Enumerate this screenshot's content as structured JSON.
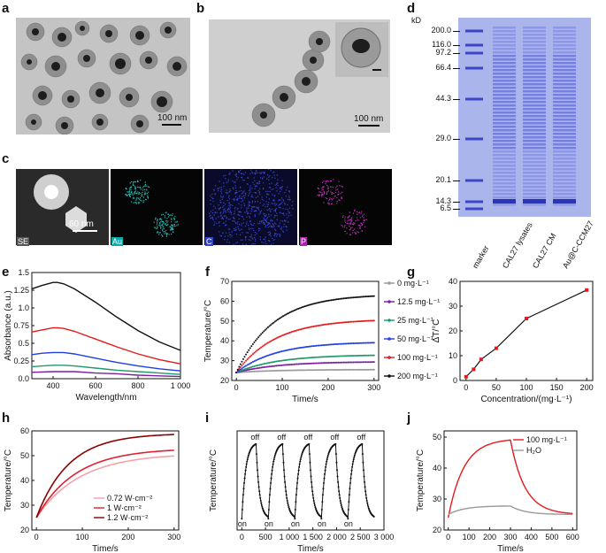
{
  "panels": {
    "a": {
      "label": "a",
      "scale": "100 nm"
    },
    "b": {
      "label": "b",
      "scale": "100 nm"
    },
    "c": {
      "label": "c",
      "scale": "60 nm",
      "maps": [
        "SE",
        "Au",
        "C",
        "P"
      ]
    },
    "d": {
      "label": "d",
      "unit": "kD",
      "mw": [
        "200.0",
        "116.0",
        "97.2",
        "66.4",
        "44.3",
        "29.0",
        "20.1",
        "14.3",
        "6.5"
      ],
      "lanes": [
        "marker",
        "CAL27 lysates",
        "CAL27 CM",
        "Au@C-CCM27"
      ]
    },
    "e": {
      "label": "e"
    },
    "f": {
      "label": "f"
    },
    "g": {
      "label": "g"
    },
    "h": {
      "label": "h"
    },
    "i": {
      "label": "i",
      "annot_off": "off",
      "annot_on": "on"
    },
    "j": {
      "label": "j"
    }
  },
  "colors": {
    "black": "#111111",
    "red": "#e41a1c",
    "blue": "#1f3fe0",
    "green": "#1f9a6a",
    "purple": "#7a1fa0",
    "gray": "#9a9a9a",
    "h1": "#f3a3a8",
    "h2": "#e02030",
    "h3": "#8b0000",
    "gel": "#5b67d8",
    "gelbg": "#a9b4ec"
  },
  "chart_data": [
    {
      "id": "e",
      "type": "line",
      "xlabel": "Wavelength/nm",
      "ylabel": "Absorbance (a.u.)",
      "xlim": [
        300,
        1000
      ],
      "ylim": [
        0,
        1.5
      ],
      "xticks": [
        {
          "v": 400,
          "t": "400"
        },
        {
          "v": 600,
          "t": "600"
        },
        {
          "v": 800,
          "t": "800"
        },
        {
          "v": 1000,
          "t": "1 000"
        }
      ],
      "yticks": [
        {
          "v": 0,
          "t": "0.0"
        },
        {
          "v": 0.25,
          "t": "0.25"
        },
        {
          "v": 0.5,
          "t": "0.5"
        },
        {
          "v": 0.75,
          "t": "0.75"
        },
        {
          "v": 1.0,
          "t": "1.0"
        },
        {
          "v": 1.25,
          "t": "1.25"
        },
        {
          "v": 1.5,
          "t": "1.5"
        }
      ],
      "series": [
        {
          "color": "black",
          "x": [
            300,
            350,
            400,
            420,
            450,
            500,
            600,
            700,
            800,
            900,
            1000
          ],
          "y": [
            1.27,
            1.32,
            1.36,
            1.36,
            1.34,
            1.27,
            1.08,
            0.87,
            0.68,
            0.52,
            0.4
          ]
        },
        {
          "color": "red",
          "x": [
            300,
            350,
            400,
            420,
            450,
            500,
            600,
            700,
            800,
            900,
            1000
          ],
          "y": [
            0.66,
            0.69,
            0.72,
            0.72,
            0.71,
            0.67,
            0.56,
            0.45,
            0.35,
            0.27,
            0.21
          ]
        },
        {
          "color": "blue",
          "x": [
            300,
            350,
            400,
            420,
            450,
            500,
            600,
            700,
            800,
            900,
            1000
          ],
          "y": [
            0.34,
            0.36,
            0.37,
            0.37,
            0.37,
            0.35,
            0.29,
            0.23,
            0.18,
            0.14,
            0.11
          ]
        },
        {
          "color": "green",
          "x": [
            300,
            350,
            400,
            450,
            500,
            600,
            700,
            800,
            900,
            1000
          ],
          "y": [
            0.17,
            0.18,
            0.19,
            0.19,
            0.18,
            0.15,
            0.12,
            0.1,
            0.08,
            0.06
          ]
        },
        {
          "color": "purple",
          "x": [
            300,
            400,
            500,
            600,
            700,
            800,
            900,
            1000
          ],
          "y": [
            0.09,
            0.1,
            0.1,
            0.08,
            0.07,
            0.05,
            0.04,
            0.03
          ]
        }
      ]
    },
    {
      "id": "f",
      "type": "line",
      "xlabel": "Time/s",
      "ylabel": "Temperature/°C",
      "xlim": [
        -10,
        310
      ],
      "ylim": [
        20,
        70
      ],
      "xticks": [
        {
          "v": 0,
          "t": "0"
        },
        {
          "v": 100,
          "t": "100"
        },
        {
          "v": 200,
          "t": "200"
        },
        {
          "v": 300,
          "t": "300"
        }
      ],
      "yticks": [
        {
          "v": 20,
          "t": "20"
        },
        {
          "v": 30,
          "t": "30"
        },
        {
          "v": 40,
          "t": "40"
        },
        {
          "v": 50,
          "t": "50"
        },
        {
          "v": 60,
          "t": "60"
        },
        {
          "v": 70,
          "t": "70"
        }
      ],
      "series": [
        {
          "name": "0 mg·L⁻¹",
          "color": "gray",
          "start": 24,
          "plateau": 25.5,
          "tau": 90
        },
        {
          "name": "12.5 mg·L⁻¹",
          "color": "purple",
          "start": 24,
          "plateau": 29.5,
          "tau": 90
        },
        {
          "name": "25 mg·L⁻¹",
          "color": "green",
          "start": 24,
          "plateau": 33,
          "tau": 90
        },
        {
          "name": "50 mg·L⁻¹",
          "color": "blue",
          "start": 24,
          "plateau": 39.5,
          "tau": 85
        },
        {
          "name": "100 mg·L⁻¹",
          "color": "red",
          "start": 24,
          "plateau": 51,
          "tau": 85
        },
        {
          "name": "200 mg·L⁻¹",
          "color": "black",
          "start": 24,
          "plateau": 63.5,
          "tau": 80
        }
      ]
    },
    {
      "id": "g",
      "type": "line",
      "xlabel": "Concentration/(mg·L⁻¹)",
      "ylabel": "ΔT/°C",
      "xlim": [
        -10,
        210
      ],
      "ylim": [
        0,
        40
      ],
      "xticks": [
        {
          "v": 0,
          "t": "0"
        },
        {
          "v": 50,
          "t": "50"
        },
        {
          "v": 100,
          "t": "100"
        },
        {
          "v": 150,
          "t": "150"
        },
        {
          "v": 200,
          "t": "200"
        }
      ],
      "yticks": [
        {
          "v": 0,
          "t": "0"
        },
        {
          "v": 10,
          "t": "10"
        },
        {
          "v": 20,
          "t": "20"
        },
        {
          "v": 30,
          "t": "30"
        },
        {
          "v": 40,
          "t": "40"
        }
      ],
      "x": [
        0,
        12.5,
        25,
        50,
        100,
        200
      ],
      "y": [
        1.5,
        4.5,
        8.5,
        13,
        25,
        36.5
      ]
    },
    {
      "id": "h",
      "type": "line",
      "xlabel": "Time/s",
      "ylabel": "Temperature/°C",
      "xlim": [
        -10,
        310
      ],
      "ylim": [
        20,
        60
      ],
      "xticks": [
        {
          "v": 0,
          "t": "0"
        },
        {
          "v": 100,
          "t": "100"
        },
        {
          "v": 200,
          "t": "200"
        },
        {
          "v": 300,
          "t": "300"
        }
      ],
      "yticks": [
        {
          "v": 20,
          "t": "20"
        },
        {
          "v": 30,
          "t": "30"
        },
        {
          "v": 40,
          "t": "40"
        },
        {
          "v": 50,
          "t": "50"
        },
        {
          "v": 60,
          "t": "60"
        }
      ],
      "series": [
        {
          "name": "0.72 W·cm⁻²",
          "color": "h1",
          "start": 25,
          "plateau": 51,
          "tau": 95
        },
        {
          "name": "1 W·cm⁻²",
          "color": "h2",
          "start": 25,
          "plateau": 53,
          "tau": 85
        },
        {
          "name": "1.2 W·cm⁻²",
          "color": "h3",
          "start": 25,
          "plateau": 59,
          "tau": 70
        }
      ]
    },
    {
      "id": "i",
      "type": "line",
      "xlabel": "Time/s",
      "ylabel": "Temperature/°C",
      "xlim": [
        -100,
        3000
      ],
      "ylim": [
        20,
        55
      ],
      "xticks": [
        {
          "v": 0,
          "t": "0"
        },
        {
          "v": 500,
          "t": "500"
        },
        {
          "v": 1000,
          "t": "1 000"
        },
        {
          "v": 1500,
          "t": "1 500"
        },
        {
          "v": 2000,
          "t": "2 000"
        },
        {
          "v": 2500,
          "t": "2 500"
        },
        {
          "v": 3000,
          "t": "3 000"
        }
      ],
      "yticks": [],
      "cycles": 5,
      "period": 560,
      "on_s": 300,
      "low": 24,
      "high": 51
    },
    {
      "id": "j",
      "type": "line",
      "xlabel": "Time/s",
      "ylabel": "Temperature/°C",
      "xlim": [
        -20,
        620
      ],
      "ylim": [
        20,
        52
      ],
      "xticks": [
        {
          "v": 0,
          "t": "0"
        },
        {
          "v": 100,
          "t": "100"
        },
        {
          "v": 200,
          "t": "200"
        },
        {
          "v": 300,
          "t": "300"
        },
        {
          "v": 400,
          "t": "400"
        },
        {
          "v": 500,
          "t": "500"
        },
        {
          "v": 600,
          "t": "600"
        }
      ],
      "yticks": [
        {
          "v": 20,
          "t": "20"
        },
        {
          "v": 30,
          "t": "30"
        },
        {
          "v": 40,
          "t": "40"
        },
        {
          "v": 50,
          "t": "50"
        }
      ],
      "series": [
        {
          "name": "100 mg·L⁻¹",
          "color": "red",
          "start": 24,
          "peak": 49.5,
          "end": 25
        },
        {
          "name": "H₂O",
          "color": "gray",
          "start": 25,
          "peak": 27.8,
          "end": 25
        }
      ]
    }
  ]
}
